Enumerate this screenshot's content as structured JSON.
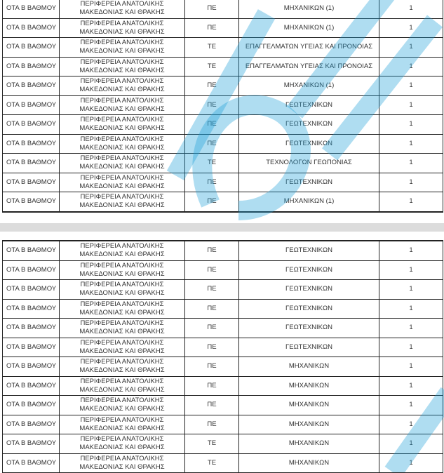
{
  "watermark_color": "#1a9fd8",
  "table1": {
    "rows": [
      [
        "ΟΤΑ Β ΒΑΘΜΟΥ",
        "ΠΕΡΙΦΕΡΕΙΑ ΑΝΑΤΟΛΙΚΗΣ",
        "ΜΑΚΕΔΟΝΙΑΣ ΚΑΙ ΘΡΑΚΗΣ",
        "ΠΕ",
        "ΜΗΧΑΝΙΚΩΝ (1)",
        "1"
      ],
      [
        "ΟΤΑ Β ΒΑΘΜΟΥ",
        "ΠΕΡΙΦΕΡΕΙΑ ΑΝΑΤΟΛΙΚΗΣ",
        "ΜΑΚΕΔΟΝΙΑΣ ΚΑΙ ΘΡΑΚΗΣ",
        "ΠΕ",
        "ΜΗΧΑΝΙΚΩΝ (1)",
        "1"
      ],
      [
        "ΟΤΑ Β ΒΑΘΜΟΥ",
        "ΠΕΡΙΦΕΡΕΙΑ ΑΝΑΤΟΛΙΚΗΣ",
        "ΜΑΚΕΔΟΝΙΑΣ ΚΑΙ ΘΡΑΚΗΣ",
        "ΤΕ",
        "ΕΠΑΓΓΕΛΜΑΤΩΝ ΥΓΕΙΑΣ ΚΑΙ ΠΡΟΝΟΙΑΣ",
        "1"
      ],
      [
        "ΟΤΑ Β ΒΑΘΜΟΥ",
        "ΠΕΡΙΦΕΡΕΙΑ ΑΝΑΤΟΛΙΚΗΣ",
        "ΜΑΚΕΔΟΝΙΑΣ ΚΑΙ ΘΡΑΚΗΣ",
        "ΤΕ",
        "ΕΠΑΓΓΕΛΜΑΤΩΝ ΥΓΕΙΑΣ ΚΑΙ ΠΡΟΝΟΙΑΣ",
        "1"
      ],
      [
        "ΟΤΑ Β ΒΑΘΜΟΥ",
        "ΠΕΡΙΦΕΡΕΙΑ ΑΝΑΤΟΛΙΚΗΣ",
        "ΜΑΚΕΔΟΝΙΑΣ ΚΑΙ ΘΡΑΚΗΣ",
        "ΠΕ",
        "ΜΗΧΑΝΙΚΩΝ (1)",
        "1"
      ],
      [
        "ΟΤΑ Β ΒΑΘΜΟΥ",
        "ΠΕΡΙΦΕΡΕΙΑ ΑΝΑΤΟΛΙΚΗΣ",
        "ΜΑΚΕΔΟΝΙΑΣ ΚΑΙ ΘΡΑΚΗΣ",
        "ΠΕ",
        "ΓΕΩΤΕΧΝΙΚΩΝ",
        "1"
      ],
      [
        "ΟΤΑ Β ΒΑΘΜΟΥ",
        "ΠΕΡΙΦΕΡΕΙΑ ΑΝΑΤΟΛΙΚΗΣ",
        "ΜΑΚΕΔΟΝΙΑΣ ΚΑΙ ΘΡΑΚΗΣ",
        "ΠΕ",
        "ΓΕΩΤΕΧΝΙΚΩΝ",
        "1"
      ],
      [
        "ΟΤΑ Β ΒΑΘΜΟΥ",
        "ΠΕΡΙΦΕΡΕΙΑ ΑΝΑΤΟΛΙΚΗΣ",
        "ΜΑΚΕΔΟΝΙΑΣ ΚΑΙ ΘΡΑΚΗΣ",
        "ΠΕ",
        "ΓΕΩΤΕΧΝΙΚΩΝ",
        "1"
      ],
      [
        "ΟΤΑ Β ΒΑΘΜΟΥ",
        "ΠΕΡΙΦΕΡΕΙΑ ΑΝΑΤΟΛΙΚΗΣ",
        "ΜΑΚΕΔΟΝΙΑΣ ΚΑΙ ΘΡΑΚΗΣ",
        "ΤΕ",
        "ΤΕΧΝΟΛΟΓΩΝ ΓΕΩΠΟΝΙΑΣ",
        "1"
      ],
      [
        "ΟΤΑ Β ΒΑΘΜΟΥ",
        "ΠΕΡΙΦΕΡΕΙΑ ΑΝΑΤΟΛΙΚΗΣ",
        "ΜΑΚΕΔΟΝΙΑΣ ΚΑΙ ΘΡΑΚΗΣ",
        "ΠΕ",
        "ΓΕΩΤΕΧΝΙΚΩΝ",
        "1"
      ],
      [
        "ΟΤΑ Β ΒΑΘΜΟΥ",
        "ΠΕΡΙΦΕΡΕΙΑ ΑΝΑΤΟΛΙΚΗΣ",
        "ΜΑΚΕΔΟΝΙΑΣ ΚΑΙ ΘΡΑΚΗΣ",
        "ΠΕ",
        "ΜΗΧΑΝΙΚΩΝ (1)",
        "1"
      ]
    ]
  },
  "table2": {
    "rows": [
      [
        "ΟΤΑ Β ΒΑΘΜΟΥ",
        "ΠΕΡΙΦΕΡΕΙΑ ΑΝΑΤΟΛΙΚΗΣ",
        "ΜΑΚΕΔΟΝΙΑΣ ΚΑΙ ΘΡΑΚΗΣ",
        "ΠΕ",
        "ΓΕΩΤΕΧΝΙΚΩΝ",
        "1"
      ],
      [
        "ΟΤΑ Β ΒΑΘΜΟΥ",
        "ΠΕΡΙΦΕΡΕΙΑ ΑΝΑΤΟΛΙΚΗΣ",
        "ΜΑΚΕΔΟΝΙΑΣ ΚΑΙ ΘΡΑΚΗΣ",
        "ΠΕ",
        "ΓΕΩΤΕΧΝΙΚΩΝ",
        "1"
      ],
      [
        "ΟΤΑ Β ΒΑΘΜΟΥ",
        "ΠΕΡΙΦΕΡΕΙΑ ΑΝΑΤΟΛΙΚΗΣ",
        "ΜΑΚΕΔΟΝΙΑΣ ΚΑΙ ΘΡΑΚΗΣ",
        "ΠΕ",
        "ΓΕΩΤΕΧΝΙΚΩΝ",
        "1"
      ],
      [
        "ΟΤΑ Β ΒΑΘΜΟΥ",
        "ΠΕΡΙΦΕΡΕΙΑ ΑΝΑΤΟΛΙΚΗΣ",
        "ΜΑΚΕΔΟΝΙΑΣ ΚΑΙ ΘΡΑΚΗΣ",
        "ΠΕ",
        "ΓΕΩΤΕΧΝΙΚΩΝ",
        "1"
      ],
      [
        "ΟΤΑ Β ΒΑΘΜΟΥ",
        "ΠΕΡΙΦΕΡΕΙΑ ΑΝΑΤΟΛΙΚΗΣ",
        "ΜΑΚΕΔΟΝΙΑΣ ΚΑΙ ΘΡΑΚΗΣ",
        "ΠΕ",
        "ΓΕΩΤΕΧΝΙΚΩΝ",
        "1"
      ],
      [
        "ΟΤΑ Β ΒΑΘΜΟΥ",
        "ΠΕΡΙΦΕΡΕΙΑ ΑΝΑΤΟΛΙΚΗΣ",
        "ΜΑΚΕΔΟΝΙΑΣ ΚΑΙ ΘΡΑΚΗΣ",
        "ΠΕ",
        "ΓΕΩΤΕΧΝΙΚΩΝ",
        "1"
      ],
      [
        "ΟΤΑ Β ΒΑΘΜΟΥ",
        "ΠΕΡΙΦΕΡΕΙΑ ΑΝΑΤΟΛΙΚΗΣ",
        "ΜΑΚΕΔΟΝΙΑΣ ΚΑΙ ΘΡΑΚΗΣ",
        "ΠΕ",
        "ΜΗΧΑΝΙΚΩΝ",
        "1"
      ],
      [
        "ΟΤΑ Β ΒΑΘΜΟΥ",
        "ΠΕΡΙΦΕΡΕΙΑ ΑΝΑΤΟΛΙΚΗΣ",
        "ΜΑΚΕΔΟΝΙΑΣ ΚΑΙ ΘΡΑΚΗΣ",
        "ΠΕ",
        "ΜΗΧΑΝΙΚΩΝ",
        "1"
      ],
      [
        "ΟΤΑ Β ΒΑΘΜΟΥ",
        "ΠΕΡΙΦΕΡΕΙΑ ΑΝΑΤΟΛΙΚΗΣ",
        "ΜΑΚΕΔΟΝΙΑΣ ΚΑΙ ΘΡΑΚΗΣ",
        "ΠΕ",
        "ΜΗΧΑΝΙΚΩΝ",
        "1"
      ],
      [
        "ΟΤΑ Β ΒΑΘΜΟΥ",
        "ΠΕΡΙΦΕΡΕΙΑ ΑΝΑΤΟΛΙΚΗΣ",
        "ΜΑΚΕΔΟΝΙΑΣ ΚΑΙ ΘΡΑΚΗΣ",
        "ΠΕ",
        "ΜΗΧΑΝΙΚΩΝ",
        "1"
      ],
      [
        "ΟΤΑ Β ΒΑΘΜΟΥ",
        "ΠΕΡΙΦΕΡΕΙΑ ΑΝΑΤΟΛΙΚΗΣ",
        "ΜΑΚΕΔΟΝΙΑΣ ΚΑΙ ΘΡΑΚΗΣ",
        "ΤΕ",
        "ΜΗΧΑΝΙΚΩΝ",
        "1"
      ],
      [
        "ΟΤΑ Β ΒΑΘΜΟΥ",
        "ΠΕΡΙΦΕΡΕΙΑ ΑΝΑΤΟΛΙΚΗΣ",
        "ΜΑΚΕΔΟΝΙΑΣ ΚΑΙ ΘΡΑΚΗΣ",
        "ΤΕ",
        "ΜΗΧΑΝΙΚΩΝ",
        "1"
      ]
    ]
  }
}
